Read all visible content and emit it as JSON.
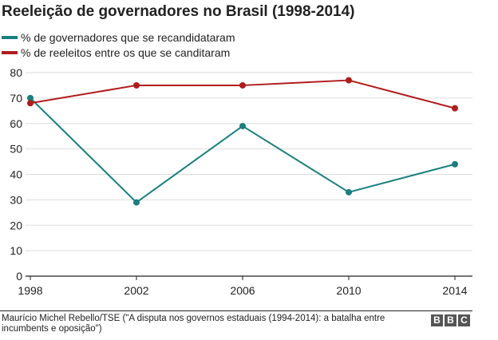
{
  "chart_data": {
    "type": "line",
    "title": "Reeleição de governadores no Brasil (1998-2014)",
    "xlabel": "",
    "ylabel": "",
    "categories": [
      "1998",
      "2002",
      "2006",
      "2010",
      "2014"
    ],
    "ylim": [
      0,
      80
    ],
    "yticks": [
      "0",
      "10",
      "20",
      "30",
      "40",
      "50",
      "60",
      "70",
      "80"
    ],
    "grid": true,
    "legend_position": "top-left",
    "series": [
      {
        "name": "% de governadores que se recandidataram",
        "color": "#1a7f7f",
        "values": [
          70,
          29,
          59,
          33,
          44
        ]
      },
      {
        "name": "% de reeleitos entre os que se canditaram",
        "color": "#b01c1c",
        "values": [
          68,
          75,
          75,
          77,
          66
        ]
      }
    ]
  },
  "footer": {
    "source": "Maurício Michel Rebello/TSE (\"A disputa nos governos estaduais (1994-2014): a batalha entre incumbents e oposição\")",
    "logo_letters": [
      "B",
      "B",
      "C"
    ]
  }
}
